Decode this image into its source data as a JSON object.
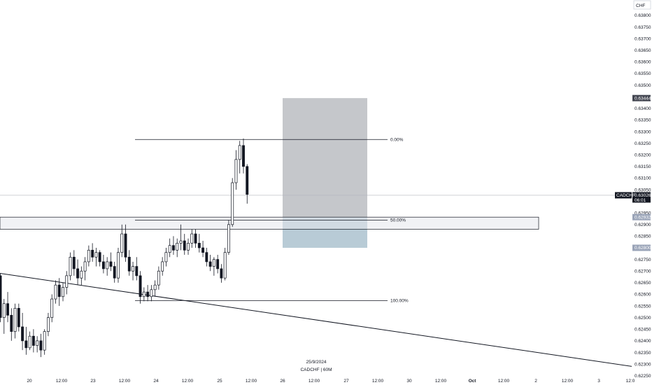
{
  "chart_data": {
    "type": "candlestick",
    "symbol": "CADCHF",
    "timeframe_caption": "CADCHF | 60M",
    "date_caption": "25/9/2024",
    "currency_badge": "CHF",
    "ylim": [
      0.6225,
      0.6385
    ],
    "y_ticks": [
      "0.63800",
      "0.63750",
      "0.63700",
      "0.63650",
      "0.63600",
      "0.63550",
      "0.63500",
      "0.63400",
      "0.63350",
      "0.63300",
      "0.63250",
      "0.63200",
      "0.63150",
      "0.63100",
      "0.63050",
      "0.62950",
      "0.62900",
      "0.62850",
      "0.62750",
      "0.62700",
      "0.62650",
      "0.62600",
      "0.62550",
      "0.62500",
      "0.62450",
      "0.62400",
      "0.62350",
      "0.62300",
      "0.62250"
    ],
    "x_ticks": [
      {
        "label": "20",
        "bold": false
      },
      {
        "label": "12:00",
        "bold": false
      },
      {
        "label": "23",
        "bold": false
      },
      {
        "label": "12:00",
        "bold": false
      },
      {
        "label": "24",
        "bold": false
      },
      {
        "label": "12:00",
        "bold": false
      },
      {
        "label": "25",
        "bold": false
      },
      {
        "label": "12:00",
        "bold": false
      },
      {
        "label": "26",
        "bold": false
      },
      {
        "label": "12:00",
        "bold": false
      },
      {
        "label": "27",
        "bold": false
      },
      {
        "label": "12:00",
        "bold": false
      },
      {
        "label": "30",
        "bold": false
      },
      {
        "label": "12:00",
        "bold": false
      },
      {
        "label": "Oct",
        "bold": true
      },
      {
        "label": "12:00",
        "bold": false
      },
      {
        "label": "2",
        "bold": false
      },
      {
        "label": "12:00",
        "bold": false
      },
      {
        "label": "3",
        "bold": false
      },
      {
        "label": "12:0",
        "bold": false
      }
    ],
    "price_tags": [
      {
        "value": "0.63444",
        "price": 0.63444,
        "color": "#434651"
      },
      {
        "value": "0.63026",
        "price": 0.63026,
        "color": "#131722",
        "countdown": "06:01",
        "label": "CADCHF"
      },
      {
        "value": "0.62932",
        "price": 0.62932,
        "color": "#9aa4b8"
      },
      {
        "value": "0.62800",
        "price": 0.628,
        "color": "#9aa4b8"
      }
    ],
    "current_price": 0.63026,
    "zone": {
      "top": 0.62932,
      "bottom": 0.6288
    },
    "position_box": {
      "top": 0.63444,
      "entry": 0.62932,
      "bottom": 0.628
    },
    "fib": {
      "high": 0.63266,
      "low": 0.62573,
      "levels": [
        {
          "label": "0.00%",
          "price": 0.63266
        },
        {
          "label": "50.00%",
          "price": 0.62919
        },
        {
          "label": "100.00%",
          "price": 0.62573
        }
      ]
    },
    "trendline": {
      "start": 0.6269,
      "end": 0.6229
    },
    "candles": [
      [
        0.6268,
        0.6269,
        0.6248,
        0.625
      ],
      [
        0.625,
        0.6258,
        0.6243,
        0.6256
      ],
      [
        0.6256,
        0.6261,
        0.6248,
        0.6251
      ],
      [
        0.6251,
        0.6254,
        0.624,
        0.6244
      ],
      [
        0.6244,
        0.6256,
        0.6241,
        0.6254
      ],
      [
        0.6254,
        0.6256,
        0.6244,
        0.6246
      ],
      [
        0.6246,
        0.6252,
        0.6236,
        0.624
      ],
      [
        0.624,
        0.6246,
        0.6234,
        0.6237
      ],
      [
        0.6237,
        0.6244,
        0.6236,
        0.6242
      ],
      [
        0.6242,
        0.6245,
        0.6235,
        0.6238
      ],
      [
        0.6238,
        0.6242,
        0.6235,
        0.624
      ],
      [
        0.624,
        0.6243,
        0.6233,
        0.6236
      ],
      [
        0.6236,
        0.6245,
        0.6234,
        0.6244
      ],
      [
        0.6244,
        0.6252,
        0.6242,
        0.625
      ],
      [
        0.625,
        0.626,
        0.6248,
        0.6258
      ],
      [
        0.6258,
        0.6266,
        0.6256,
        0.6264
      ],
      [
        0.6264,
        0.6267,
        0.6255,
        0.6259
      ],
      [
        0.6259,
        0.6265,
        0.6257,
        0.6263
      ],
      [
        0.6263,
        0.627,
        0.626,
        0.6268
      ],
      [
        0.6268,
        0.6278,
        0.6266,
        0.6276
      ],
      [
        0.6276,
        0.6279,
        0.6268,
        0.6271
      ],
      [
        0.6271,
        0.6275,
        0.6264,
        0.6267
      ],
      [
        0.6267,
        0.6272,
        0.6264,
        0.627
      ],
      [
        0.627,
        0.6276,
        0.6266,
        0.6274
      ],
      [
        0.6274,
        0.6281,
        0.6272,
        0.6279
      ],
      [
        0.6279,
        0.6282,
        0.6274,
        0.6276
      ],
      [
        0.6276,
        0.628,
        0.6272,
        0.6278
      ],
      [
        0.6278,
        0.6279,
        0.6272,
        0.6274
      ],
      [
        0.6274,
        0.6277,
        0.6269,
        0.6271
      ],
      [
        0.6271,
        0.6276,
        0.6268,
        0.6274
      ],
      [
        0.6274,
        0.6278,
        0.627,
        0.6272
      ],
      [
        0.6272,
        0.6274,
        0.6265,
        0.6267
      ],
      [
        0.6267,
        0.628,
        0.6265,
        0.6278
      ],
      [
        0.6278,
        0.629,
        0.6276,
        0.6286
      ],
      [
        0.6286,
        0.629,
        0.6274,
        0.6276
      ],
      [
        0.6276,
        0.6279,
        0.6268,
        0.627
      ],
      [
        0.627,
        0.6274,
        0.6266,
        0.6272
      ],
      [
        0.6272,
        0.6276,
        0.6266,
        0.6268
      ],
      [
        0.6268,
        0.627,
        0.6256,
        0.6259
      ],
      [
        0.6259,
        0.6263,
        0.6257,
        0.6261
      ],
      [
        0.6261,
        0.6264,
        0.6257,
        0.6259
      ],
      [
        0.6259,
        0.6264,
        0.6257,
        0.6262
      ],
      [
        0.6262,
        0.6266,
        0.6259,
        0.6264
      ],
      [
        0.6264,
        0.6272,
        0.6262,
        0.627
      ],
      [
        0.627,
        0.6276,
        0.6268,
        0.6274
      ],
      [
        0.6274,
        0.628,
        0.6272,
        0.6278
      ],
      [
        0.6278,
        0.6284,
        0.6276,
        0.6281
      ],
      [
        0.6281,
        0.6285,
        0.6277,
        0.6279
      ],
      [
        0.6279,
        0.6284,
        0.6276,
        0.6282
      ],
      [
        0.6282,
        0.629,
        0.6279,
        0.6283
      ],
      [
        0.6283,
        0.6286,
        0.6277,
        0.6279
      ],
      [
        0.6279,
        0.6284,
        0.6277,
        0.6282
      ],
      [
        0.6282,
        0.6288,
        0.628,
        0.6286
      ],
      [
        0.6286,
        0.6288,
        0.628,
        0.6282
      ],
      [
        0.6282,
        0.6286,
        0.6278,
        0.628
      ],
      [
        0.628,
        0.6283,
        0.6276,
        0.6278
      ],
      [
        0.6278,
        0.628,
        0.6272,
        0.6274
      ],
      [
        0.6274,
        0.6277,
        0.627,
        0.6272
      ],
      [
        0.6272,
        0.6276,
        0.6268,
        0.6275
      ],
      [
        0.6275,
        0.6277,
        0.6269,
        0.6271
      ],
      [
        0.6271,
        0.6273,
        0.6265,
        0.6267
      ],
      [
        0.6267,
        0.628,
        0.6266,
        0.6278
      ],
      [
        0.6278,
        0.6292,
        0.6277,
        0.629
      ],
      [
        0.629,
        0.631,
        0.6289,
        0.6308
      ],
      [
        0.6308,
        0.6322,
        0.6305,
        0.6318
      ],
      [
        0.6318,
        0.6326,
        0.6312,
        0.6324
      ],
      [
        0.6324,
        0.6327,
        0.6312,
        0.6315
      ],
      [
        0.6315,
        0.6316,
        0.6299,
        0.6303
      ]
    ]
  }
}
